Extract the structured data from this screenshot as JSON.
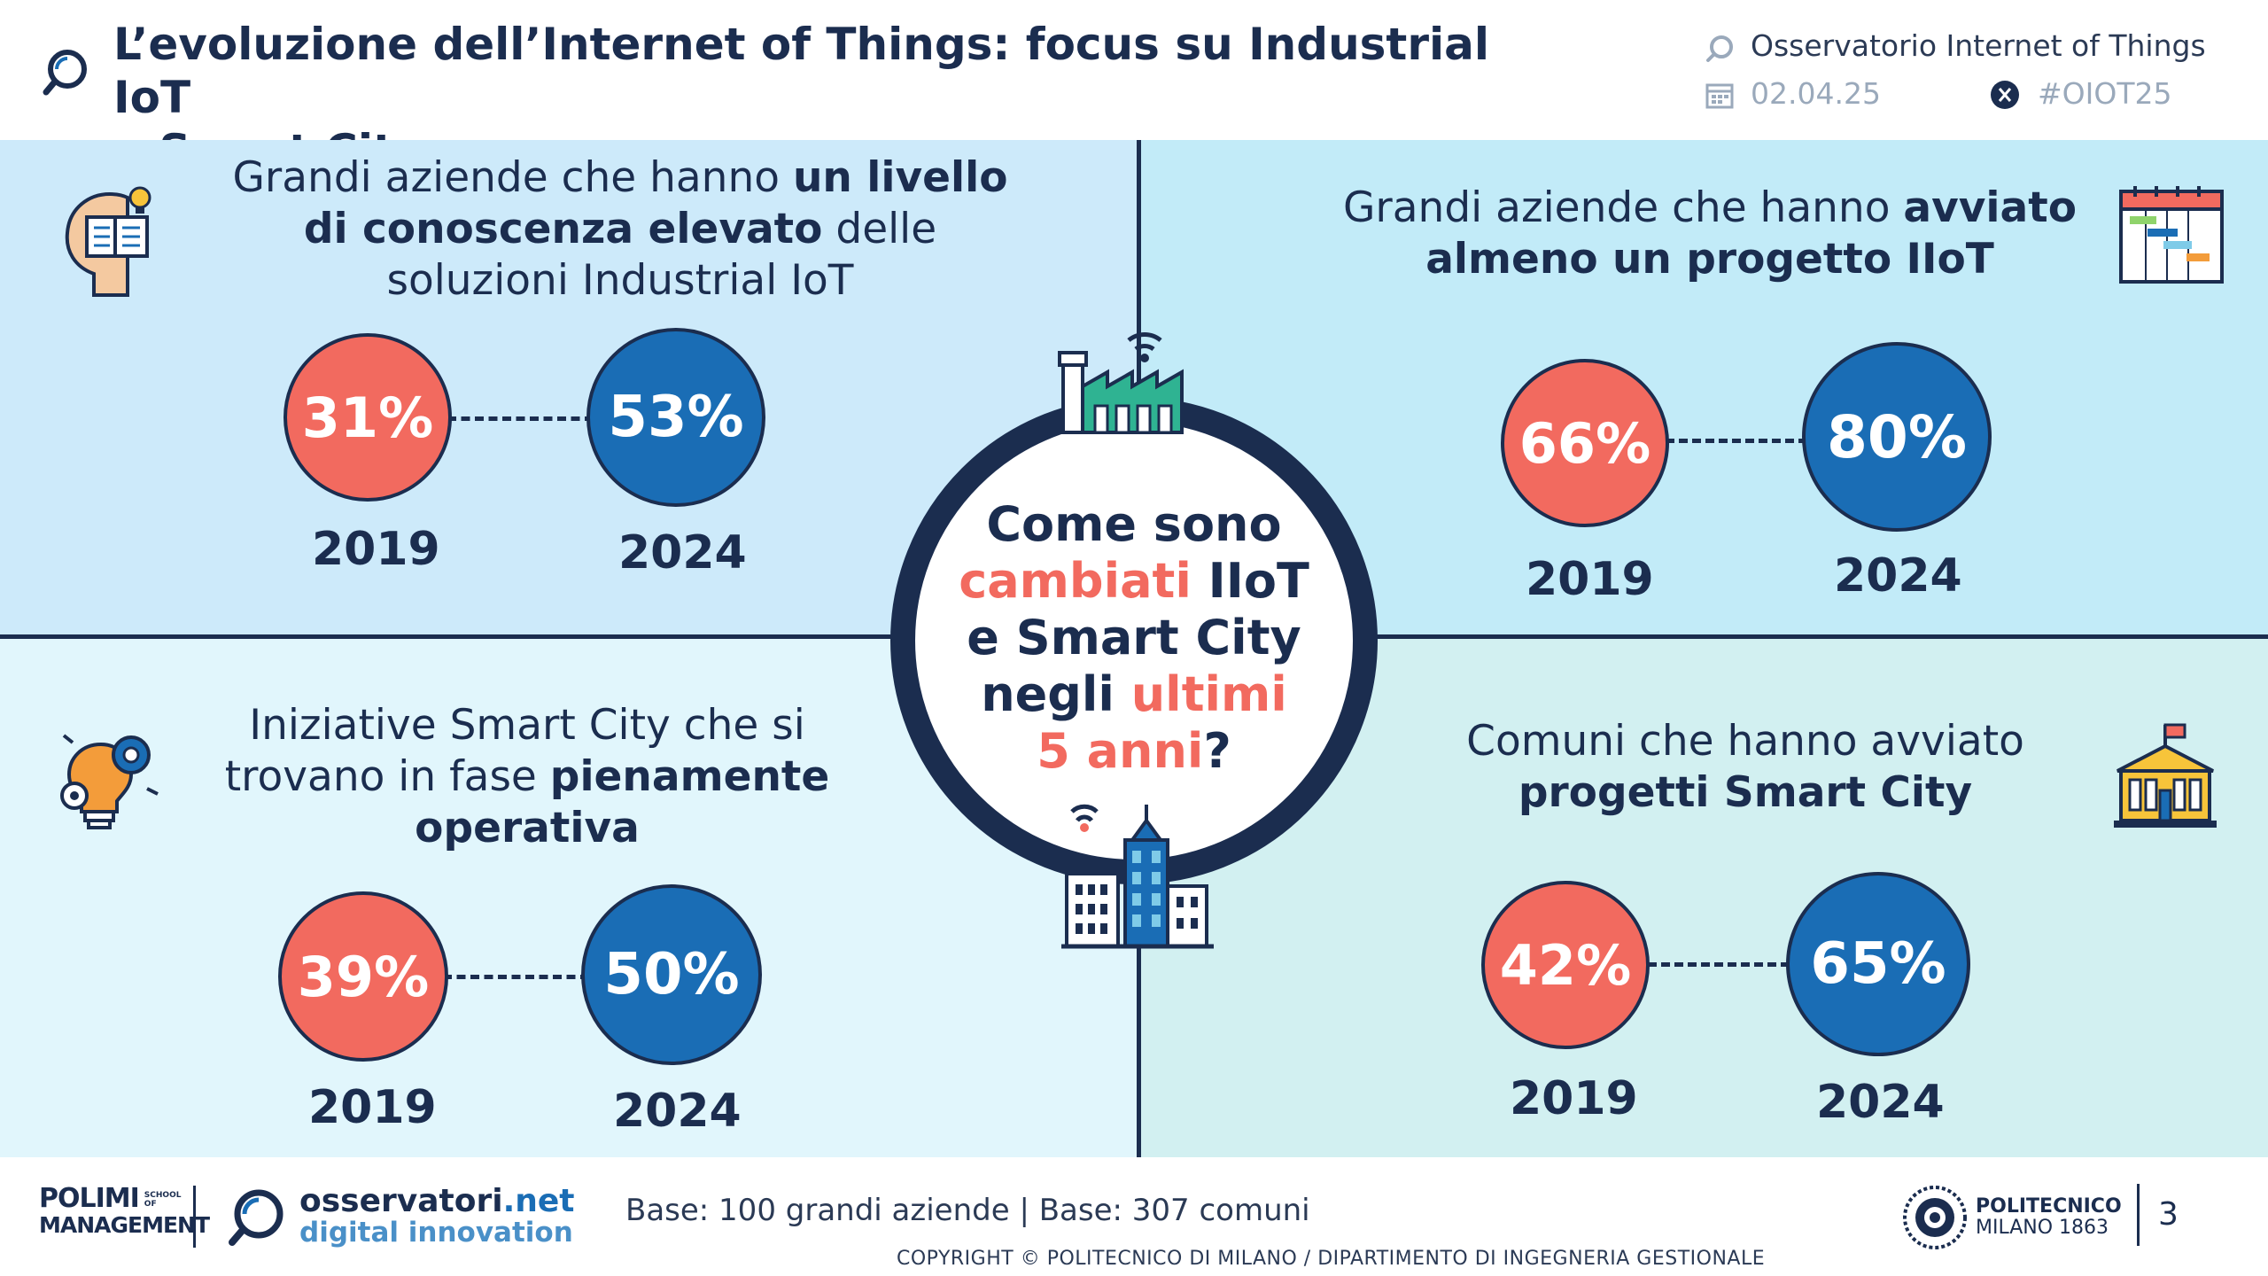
{
  "header": {
    "title_line1": "L’evoluzione dell’Internet of Things: focus su Industrial IoT",
    "title_line2": "e Smart City",
    "observatory": "Osservatorio Internet of Things",
    "date": "02.04.25",
    "hashtag": "#OIOT25"
  },
  "quadrants": {
    "top_left": {
      "line1_normal": "Grandi aziende che hanno ",
      "line1_bold": "un livello",
      "line2_bold": "di conoscenza elevato",
      "line2_normal": " delle",
      "line3_normal": "soluzioni Industrial IoT",
      "value_2019": "31%",
      "value_2024": "53%",
      "year_a": "2019",
      "year_b": "2024"
    },
    "top_right": {
      "line1_normal": "Grandi aziende che hanno ",
      "line1_bold": "avviato",
      "line2_bold": "almeno un progetto IIoT",
      "value_2019": "66%",
      "value_2024": "80%",
      "year_a": "2019",
      "year_b": "2024"
    },
    "bottom_left": {
      "line1_normal": "Iniziative Smart City che si",
      "line2_normal": "trovano in fase ",
      "line2_bold": "pienamente",
      "line3_bold": "operativa",
      "value_2019": "39%",
      "value_2024": "50%",
      "year_a": "2019",
      "year_b": "2024"
    },
    "bottom_right": {
      "line1_normal": "Comuni che hanno avviato",
      "line2_bold": "progetti Smart City",
      "value_2019": "42%",
      "value_2024": "65%",
      "year_a": "2019",
      "year_b": "2024"
    }
  },
  "center": {
    "l1": "Come sono",
    "l2_accent": "cambiati",
    "l2_rest": " IIoT",
    "l3": "e Smart City",
    "l4_start": "negli ",
    "l4_accent": "ultimi",
    "l5_accent": "5 anni",
    "l5_rest": "?"
  },
  "footer": {
    "polimi_line1": "POLIMI",
    "polimi_school": "SCHOOL OF",
    "polimi_line2": "MANAGEMENT",
    "oss_brand": "osservatori",
    "oss_tld": ".net",
    "oss_sub": "digital innovation",
    "base": "Base: 100 grandi aziende | Base: 307 comuni",
    "copyright": "COPYRIGHT © POLITECNICO DI MILANO / DIPARTIMENTO DI INGEGNERIA GESTIONALE",
    "politecnico_line1": "POLITECNICO",
    "politecnico_line2": "MILANO 1863",
    "page_number": "3"
  },
  "colors": {
    "navy": "#1b2d4f",
    "red": "#f26a5f",
    "blue": "#1a6db5"
  }
}
